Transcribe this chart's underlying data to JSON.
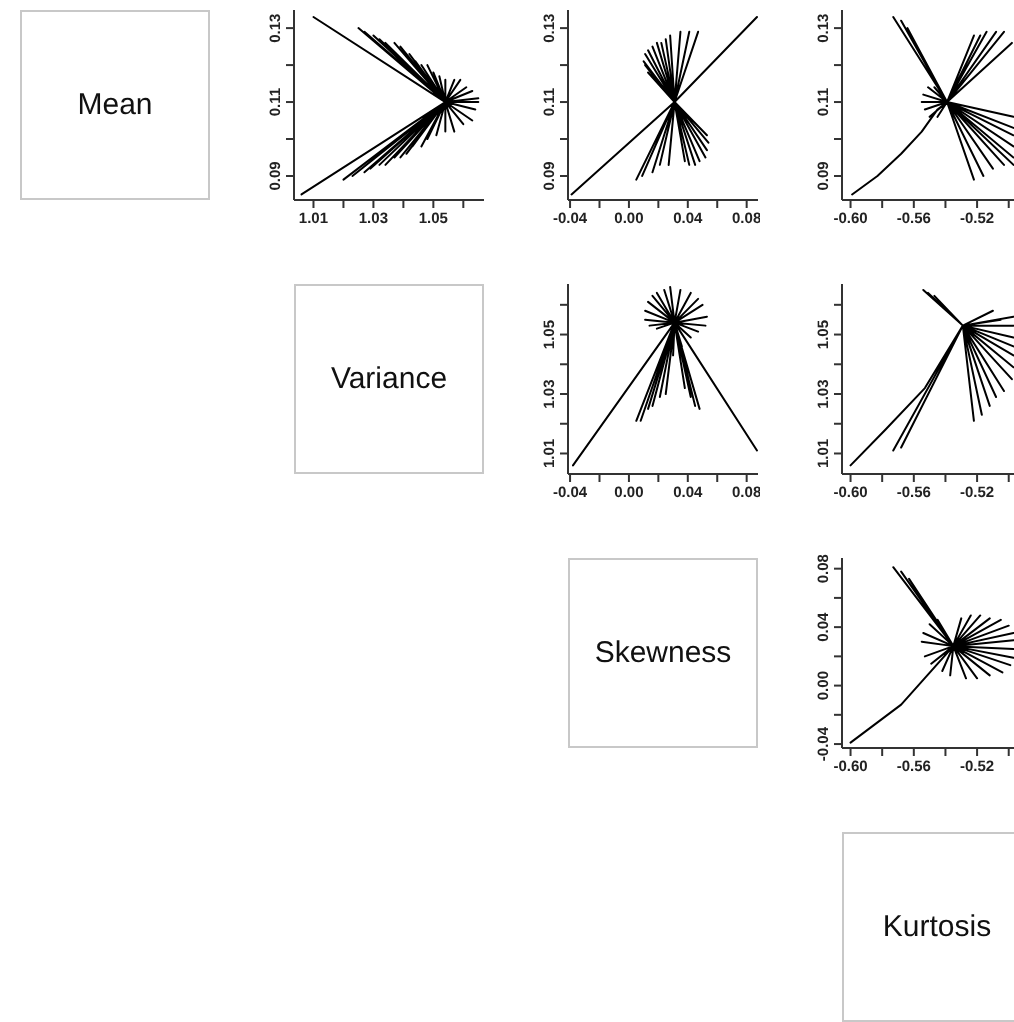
{
  "chart_data": [
    {
      "type": "other",
      "title": "Mean"
    },
    {
      "type": "line",
      "color": "#000000",
      "xlim": [
        1.0035,
        1.0669
      ],
      "ylim": [
        0.0835,
        0.1349
      ],
      "xticks": [
        1.01,
        {
          "value": 1.02,
          "label": null
        },
        1.03,
        {
          "value": 1.04,
          "label": null
        },
        1.05,
        {
          "value": 1.06,
          "label": null
        }
      ],
      "yticks": [
        0.09,
        {
          "value": 0.1,
          "label": null
        },
        0.11,
        {
          "value": 0.12,
          "label": null
        },
        0.13
      ],
      "x": [
        1.054,
        1.01,
        1.054,
        1.025,
        1.054,
        1.027,
        1.054,
        1.03,
        1.054,
        1.032,
        1.054,
        1.034,
        1.054,
        1.037,
        1.054,
        1.039,
        1.054,
        1.04,
        1.054,
        1.042,
        1.054,
        1.044,
        1.054,
        1.046,
        1.054,
        1.048,
        1.054,
        1.05,
        1.054,
        1.052,
        1.054,
        1.054,
        1.054,
        1.057,
        1.054,
        1.059,
        1.054,
        1.061,
        1.054,
        1.063,
        1.054,
        1.065,
        1.054,
        1.065,
        1.054,
        1.064,
        1.054,
        1.063,
        1.054,
        1.06,
        1.054,
        1.057,
        1.054,
        1.054,
        1.054,
        1.051,
        1.054,
        1.048,
        1.054,
        1.046,
        1.054,
        1.043,
        1.054,
        1.041,
        1.054,
        1.039,
        1.054,
        1.037,
        1.054,
        1.034,
        1.054,
        1.032,
        1.054,
        1.029,
        1.054,
        1.027,
        1.054,
        1.023,
        1.054,
        1.02,
        1.054,
        1.006
      ],
      "values": [
        0.11,
        0.133,
        0.11,
        0.13,
        0.11,
        0.129,
        0.11,
        0.128,
        0.11,
        0.127,
        0.11,
        0.126,
        0.11,
        0.126,
        0.11,
        0.125,
        0.11,
        0.124,
        0.11,
        0.123,
        0.11,
        0.121,
        0.11,
        0.12,
        0.11,
        0.12,
        0.11,
        0.118,
        0.11,
        0.117,
        0.11,
        0.116,
        0.11,
        0.116,
        0.11,
        0.116,
        0.11,
        0.114,
        0.11,
        0.113,
        0.11,
        0.111,
        0.11,
        0.11,
        0.11,
        0.108,
        0.11,
        0.105,
        0.11,
        0.104,
        0.11,
        0.102,
        0.11,
        0.102,
        0.11,
        0.101,
        0.11,
        0.1,
        0.11,
        0.098,
        0.11,
        0.098,
        0.11,
        0.096,
        0.11,
        0.095,
        0.11,
        0.095,
        0.11,
        0.093,
        0.11,
        0.093,
        0.11,
        0.092,
        0.11,
        0.091,
        0.11,
        0.09,
        0.11,
        0.089,
        0.11,
        0.085
      ]
    },
    {
      "type": "line",
      "color": "#000000",
      "xlim": [
        -0.0414,
        0.0877
      ],
      "ylim": [
        0.0835,
        0.1349
      ],
      "xticks": [
        -0.04,
        {
          "value": -0.02,
          "label": null
        },
        {
          "value": 0,
          "label": "0.00"
        },
        {
          "value": 0.02,
          "label": null
        },
        0.04,
        {
          "value": 0.06,
          "label": null
        },
        0.08
      ],
      "yticks": [
        0.09,
        {
          "value": 0.1,
          "label": null
        },
        0.11,
        {
          "value": 0.12,
          "label": null
        },
        0.13
      ],
      "x": [
        0.031,
        -0.039,
        0.031,
        0.087,
        0.031,
        0.011,
        0.031,
        0.01,
        0.031,
        0.011,
        0.031,
        0.013,
        0.031,
        0.016,
        0.031,
        0.019,
        0.031,
        0.022,
        0.031,
        0.025,
        0.031,
        0.028,
        0.031,
        0.013,
        0.031,
        0.016,
        0.031,
        0.035,
        0.031,
        0.041,
        0.031,
        0.047,
        0.031,
        0.053,
        0.031,
        0.054,
        0.031,
        0.053,
        0.031,
        0.052,
        0.031,
        0.048,
        0.031,
        0.045,
        0.031,
        0.041,
        0.031,
        0.038,
        0.031,
        0.005,
        0.031,
        0.009,
        0.031,
        0.016,
        0.031,
        0.021,
        0.031,
        0.027
      ],
      "values": [
        0.11,
        0.085,
        0.11,
        0.133,
        0.11,
        0.12,
        0.11,
        0.121,
        0.11,
        0.123,
        0.11,
        0.124,
        0.11,
        0.125,
        0.11,
        0.126,
        0.11,
        0.126,
        0.11,
        0.127,
        0.11,
        0.128,
        0.11,
        0.118,
        0.11,
        0.117,
        0.11,
        0.129,
        0.11,
        0.129,
        0.11,
        0.129,
        0.11,
        0.101,
        0.11,
        0.099,
        0.11,
        0.097,
        0.11,
        0.095,
        0.11,
        0.094,
        0.11,
        0.093,
        0.11,
        0.093,
        0.11,
        0.094,
        0.11,
        0.089,
        0.11,
        0.09,
        0.11,
        0.091,
        0.11,
        0.093,
        0.11,
        0.093
      ]
    },
    {
      "type": "line",
      "color": "#000000",
      "xlim": [
        -0.6054,
        -0.4954
      ],
      "ylim": [
        0.0835,
        0.1349
      ],
      "xticks": [
        {
          "value": -0.6,
          "label": "-0.60"
        },
        {
          "value": -0.58,
          "label": null
        },
        -0.56,
        {
          "value": -0.54,
          "label": null
        },
        -0.52,
        {
          "value": -0.5,
          "label": null
        }
      ],
      "yticks": [
        0.09,
        {
          "value": 0.1,
          "label": null
        },
        0.11,
        {
          "value": 0.12,
          "label": null
        },
        0.13
      ],
      "x": [
        -0.539,
        -0.545,
        -0.555,
        -0.568,
        -0.583,
        -0.599,
        -0.583,
        -0.568,
        -0.555,
        -0.545,
        -0.539,
        -0.573,
        -0.539,
        -0.568,
        -0.539,
        -0.564,
        -0.539,
        -0.555,
        -0.539,
        -0.554,
        -0.539,
        -0.551,
        -0.539,
        -0.547,
        -0.539,
        -0.553,
        -0.539,
        -0.55,
        -0.539,
        -0.545,
        -0.539,
        -0.522,
        -0.539,
        -0.518,
        -0.539,
        -0.514,
        -0.539,
        -0.508,
        -0.539,
        -0.503,
        -0.539,
        -0.498,
        -0.539,
        -0.497,
        -0.539,
        -0.497,
        -0.539,
        -0.497,
        -0.539,
        -0.497,
        -0.539,
        -0.497,
        -0.539,
        -0.497,
        -0.539,
        -0.522,
        -0.539,
        -0.516,
        -0.539,
        -0.51,
        -0.539,
        -0.503
      ],
      "values": [
        0.11,
        0.108,
        0.102,
        0.096,
        0.09,
        0.085,
        0.09,
        0.096,
        0.102,
        0.108,
        0.11,
        0.133,
        0.11,
        0.132,
        0.11,
        0.13,
        0.11,
        0.11,
        0.11,
        0.112,
        0.11,
        0.114,
        0.11,
        0.114,
        0.11,
        0.108,
        0.11,
        0.106,
        0.11,
        0.106,
        0.11,
        0.128,
        0.11,
        0.128,
        0.11,
        0.129,
        0.11,
        0.129,
        0.11,
        0.129,
        0.11,
        0.126,
        0.11,
        0.106,
        0.11,
        0.103,
        0.11,
        0.101,
        0.11,
        0.098,
        0.11,
        0.095,
        0.11,
        0.093,
        0.11,
        0.089,
        0.11,
        0.09,
        0.11,
        0.092,
        0.11,
        0.093
      ]
    },
    {
      "type": "other",
      "title": "Variance"
    },
    {
      "type": "line",
      "color": "#000000",
      "xlim": [
        -0.0414,
        0.0877
      ],
      "ylim": [
        1.0031,
        1.067
      ],
      "xticks": [
        -0.04,
        {
          "value": -0.02,
          "label": null
        },
        {
          "value": 0,
          "label": "0.00"
        },
        {
          "value": 0.02,
          "label": null
        },
        0.04,
        {
          "value": 0.06,
          "label": null
        },
        0.08
      ],
      "yticks": [
        1.01,
        {
          "value": 1.02,
          "label": null
        },
        1.03,
        {
          "value": 1.04,
          "label": null
        },
        1.05,
        {
          "value": 1.06,
          "label": null
        }
      ],
      "x": [
        0.031,
        -0.038,
        0.031,
        0.087,
        0.031,
        0.005,
        0.031,
        0.008,
        0.031,
        0.013,
        0.031,
        0.016,
        0.031,
        0.021,
        0.031,
        0.025,
        0.031,
        0.038,
        0.031,
        0.042,
        0.031,
        0.045,
        0.031,
        0.048,
        0.031,
        0.019,
        0.031,
        0.024,
        0.031,
        0.028,
        0.031,
        0.035,
        0.031,
        0.042,
        0.031,
        0.047,
        0.031,
        0.05,
        0.031,
        0.053,
        0.031,
        0.052,
        0.031,
        0.047,
        0.031,
        0.042,
        0.031,
        0.019,
        0.031,
        0.014,
        0.031,
        0.011,
        0.031,
        0.011,
        0.031,
        0.013,
        0.031,
        0.016,
        0.031,
        0.026,
        0.031,
        0.036,
        0.031,
        0.03
      ],
      "values": [
        1.054,
        1.006,
        1.054,
        1.011,
        1.054,
        1.021,
        1.054,
        1.021,
        1.054,
        1.025,
        1.054,
        1.026,
        1.054,
        1.029,
        1.054,
        1.03,
        1.054,
        1.032,
        1.054,
        1.029,
        1.054,
        1.026,
        1.054,
        1.025,
        1.054,
        1.064,
        1.054,
        1.065,
        1.054,
        1.066,
        1.054,
        1.065,
        1.054,
        1.064,
        1.054,
        1.062,
        1.054,
        1.06,
        1.054,
        1.056,
        1.054,
        1.053,
        1.054,
        1.051,
        1.054,
        1.049,
        1.054,
        1.052,
        1.054,
        1.053,
        1.054,
        1.055,
        1.054,
        1.058,
        1.054,
        1.061,
        1.054,
        1.063,
        1.054,
        1.046,
        1.054,
        1.046,
        1.054,
        1.043
      ]
    },
    {
      "type": "line",
      "color": "#000000",
      "xlim": [
        -0.6054,
        -0.4954
      ],
      "ylim": [
        1.0031,
        1.067
      ],
      "xticks": [
        {
          "value": -0.6,
          "label": "-0.60"
        },
        {
          "value": -0.58,
          "label": null
        },
        -0.56,
        {
          "value": -0.54,
          "label": null
        },
        -0.52,
        {
          "value": -0.5,
          "label": null
        }
      ],
      "yticks": [
        1.01,
        {
          "value": 1.02,
          "label": null
        },
        1.03,
        {
          "value": 1.04,
          "label": null
        },
        1.05,
        {
          "value": 1.06,
          "label": null
        }
      ],
      "x": [
        -0.529,
        -0.553,
        -0.578,
        -0.6,
        -0.578,
        -0.553,
        -0.529,
        -0.573,
        -0.529,
        -0.568,
        -0.529,
        -0.554,
        -0.529,
        -0.551,
        -0.529,
        -0.547,
        -0.529,
        -0.497,
        -0.529,
        -0.497,
        -0.529,
        -0.497,
        -0.529,
        -0.497,
        -0.529,
        -0.497,
        -0.529,
        -0.497,
        -0.529,
        -0.51,
        -0.529,
        -0.505,
        -0.529,
        -0.522,
        -0.529,
        -0.517,
        -0.529,
        -0.512,
        -0.529,
        -0.508,
        -0.529,
        -0.503,
        -0.529,
        -0.498
      ],
      "values": [
        1.053,
        1.032,
        1.018,
        1.006,
        1.018,
        1.032,
        1.053,
        1.011,
        1.053,
        1.012,
        1.053,
        1.065,
        1.053,
        1.064,
        1.053,
        1.063,
        1.053,
        1.056,
        1.053,
        1.053,
        1.053,
        1.049,
        1.053,
        1.046,
        1.053,
        1.043,
        1.053,
        1.039,
        1.053,
        1.058,
        1.053,
        1.055,
        1.053,
        1.021,
        1.053,
        1.023,
        1.053,
        1.026,
        1.053,
        1.029,
        1.053,
        1.031,
        1.053,
        1.035
      ]
    },
    {
      "type": "other",
      "title": "Skewness"
    },
    {
      "type": "line",
      "color": "#000000",
      "xlim": [
        -0.6054,
        -0.4954
      ],
      "ylim": [
        -0.0427,
        0.0873
      ],
      "xticks": [
        {
          "value": -0.6,
          "label": "-0.60"
        },
        {
          "value": -0.58,
          "label": null
        },
        -0.56,
        {
          "value": -0.54,
          "label": null
        },
        -0.52,
        {
          "value": -0.5,
          "label": null
        }
      ],
      "yticks": [
        -0.04,
        {
          "value": -0.02,
          "label": null
        },
        {
          "value": 0,
          "label": "0.00"
        },
        {
          "value": 0.02,
          "label": null
        },
        0.04,
        {
          "value": 0.06,
          "label": null
        },
        0.08
      ],
      "x": [
        -0.535,
        -0.568,
        -0.6,
        -0.568,
        -0.535,
        -0.573,
        -0.535,
        -0.568,
        -0.535,
        -0.563,
        -0.535,
        -0.555,
        -0.535,
        -0.554,
        -0.535,
        -0.55,
        -0.535,
        -0.545,
        -0.535,
        -0.553,
        -0.535,
        -0.549,
        -0.535,
        -0.542,
        -0.535,
        -0.537,
        -0.535,
        -0.53,
        -0.535,
        -0.524,
        -0.535,
        -0.518,
        -0.535,
        -0.512,
        -0.535,
        -0.505,
        -0.535,
        -0.5,
        -0.535,
        -0.497,
        -0.535,
        -0.497,
        -0.535,
        -0.497,
        -0.535,
        -0.497,
        -0.535,
        -0.499,
        -0.535,
        -0.504,
        -0.535,
        -0.512,
        -0.535,
        -0.52,
        -0.535,
        -0.527
      ],
      "values": [
        0.027,
        -0.013,
        -0.039,
        -0.013,
        0.027,
        0.081,
        0.027,
        0.078,
        0.027,
        0.073,
        0.027,
        0.03,
        0.027,
        0.036,
        0.027,
        0.042,
        0.027,
        0.045,
        0.027,
        0.02,
        0.027,
        0.015,
        0.027,
        0.01,
        0.027,
        0.007,
        0.027,
        0.046,
        0.027,
        0.048,
        0.027,
        0.048,
        0.027,
        0.046,
        0.027,
        0.045,
        0.027,
        0.041,
        0.027,
        0.036,
        0.027,
        0.031,
        0.027,
        0.025,
        0.027,
        0.019,
        0.027,
        0.014,
        0.027,
        0.009,
        0.027,
        0.007,
        0.027,
        0.005,
        0.027,
        0.005
      ]
    },
    {
      "type": "other",
      "title": "Kurtosis"
    }
  ]
}
